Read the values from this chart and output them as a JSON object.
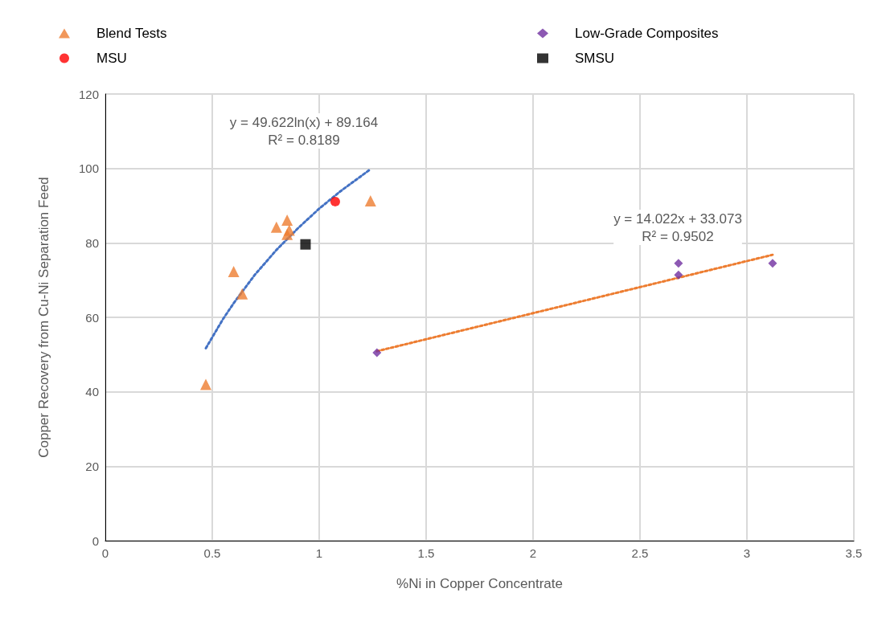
{
  "chart_data": {
    "type": "scatter",
    "xlabel": "%Ni in Copper Concentrate",
    "ylabel": "Copper Recovery from Cu-Ni Separation Feed",
    "xlim": [
      0,
      3.5
    ],
    "xticks": [
      0,
      0.5,
      1,
      1.5,
      2,
      2.5,
      3,
      3.5
    ],
    "ylim": [
      0,
      120
    ],
    "yticks": [
      0,
      20,
      40,
      60,
      80,
      100,
      120
    ],
    "grid": true,
    "legend": "top",
    "series": [
      {
        "name": "Blend Tests",
        "color": "#ed7d31",
        "marker": "triangle",
        "x": [
          0.47,
          0.6,
          0.64,
          0.8,
          0.85,
          0.85,
          0.86,
          1.24
        ],
        "values": [
          42,
          72.3,
          66.3,
          84.2,
          86.1,
          82.3,
          83.4,
          91.3
        ]
      },
      {
        "name": "MSU",
        "color": "#ff0000",
        "marker": "circle",
        "x": [
          1.075
        ],
        "values": [
          91.1
        ]
      },
      {
        "name": "Low-Grade Composites",
        "color": "#7030a0",
        "marker": "diamond",
        "x": [
          1.27,
          2.68,
          2.68,
          3.12
        ],
        "values": [
          50.5,
          74.5,
          71.4,
          74.5
        ]
      },
      {
        "name": "SMSU",
        "color": "#000000",
        "marker": "square",
        "x": [
          0.936
        ],
        "values": [
          79.6
        ]
      },
      {
        "type": "line",
        "color": "#4472c4",
        "marker": "none",
        "line_style": "dotted",
        "x": [
          0.47,
          0.55,
          0.6,
          0.7,
          0.8,
          0.9,
          1.0,
          1.1,
          1.24
        ],
        "values": [
          51.7,
          59.5,
          63.8,
          71.5,
          78.1,
          83.9,
          89.2,
          93.9,
          99.8
        ]
      },
      {
        "type": "line",
        "color": "#ed7d31",
        "marker": "none",
        "line_style": "dotted",
        "x": [
          1.27,
          3.12
        ],
        "values": [
          50.9,
          76.8
        ]
      }
    ],
    "annotations": [
      "y = 49.622ln(x) + 89.164\nR² = 0.8189",
      "y = 14.022x + 33.073\nR² = 0.9502"
    ]
  }
}
